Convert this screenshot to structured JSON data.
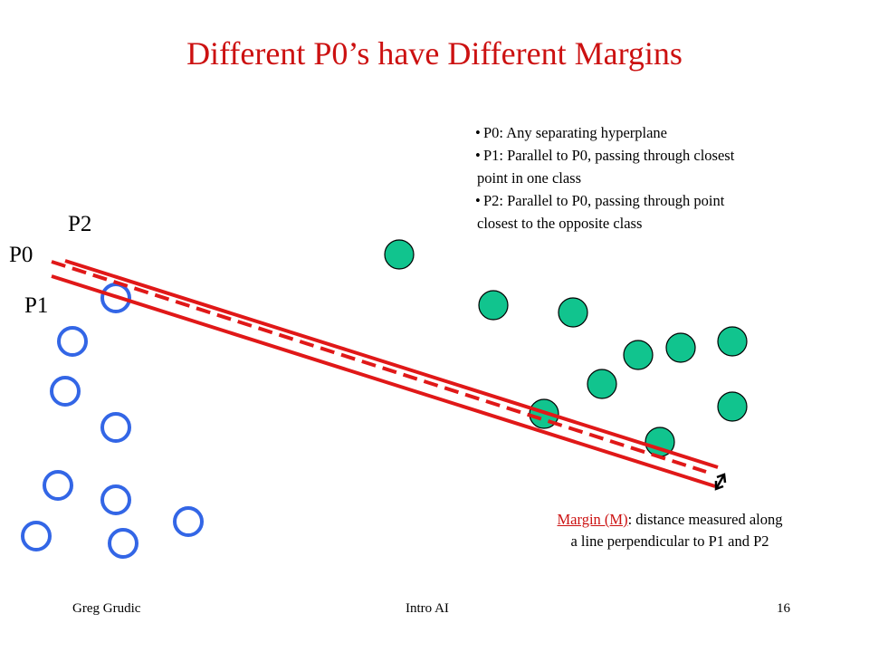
{
  "slide": {
    "title": "Different P0’s have Different Margins",
    "bullets": [
      "P0:  Any separating hyperplane",
      "P1:  Parallel to P0, passing through closest point in one class",
      "P2:  Parallel to P0, passing through point closest to the opposite class"
    ],
    "labels": {
      "p2": "P2",
      "p0": "P0",
      "p1": "P1"
    },
    "margin_note": {
      "term": "Margin (M)",
      "rest_line1": ": distance measured along",
      "line2": "a line perpendicular to P1 and P2"
    },
    "footer": {
      "author": "Greg Grudic",
      "course": "Intro AI",
      "page": "16"
    }
  },
  "colors": {
    "title": "#cc1111",
    "lines": "#e01818",
    "open_circles": "#3366e6",
    "filled_circles": "#11c48e"
  }
}
